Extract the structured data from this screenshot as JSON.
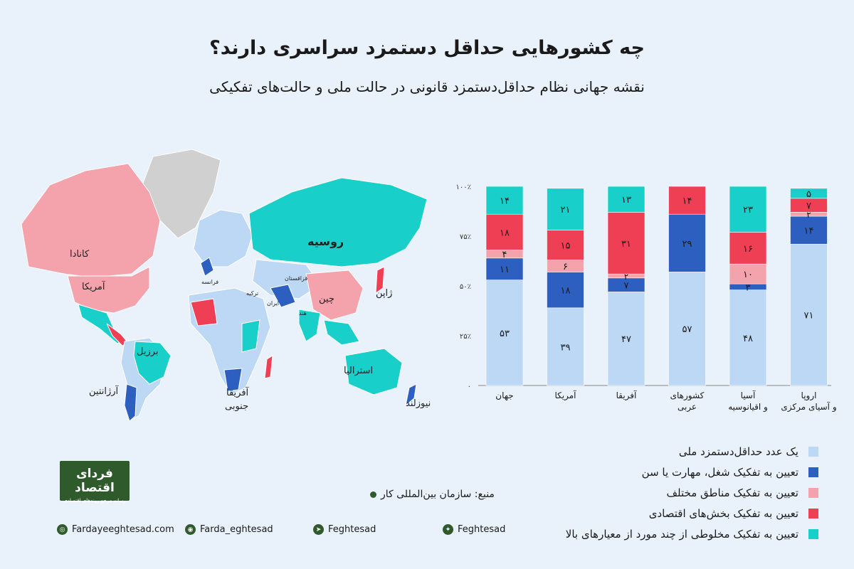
{
  "header": {
    "title": "چه کشورهایی حداقل دستمزد سراسری دارند؟",
    "subtitle": "نقشه جهانی نظام حداقل‌دستمزد قانونی در حالت ملی و حالت‌های تفکیکی"
  },
  "map": {
    "labels": {
      "russia": "روسیه",
      "canada": "کانادا",
      "usa": "آمریکا",
      "china": "چین",
      "japan": "ژاپن",
      "brazil": "برزیل",
      "argentina": "آرژانتین",
      "south_africa_1": "آفریقا",
      "south_africa_2": "جنوبی",
      "australia": "استرالیا",
      "new_zealand": "نیوزلند",
      "kazakhstan": "قزاقستان",
      "iran": "ایران",
      "india": "هند",
      "france": "فرانسه",
      "turkey": "ترکیه"
    }
  },
  "colors": {
    "national": "#bcd8f5",
    "occupation": "#2c5fbf",
    "regions": "#f4a3ac",
    "sectors": "#ef3f55",
    "mixed": "#19cfc9",
    "nodata": "#d0d0d0"
  },
  "chart_data": {
    "type": "bar",
    "stacked": true,
    "categories": [
      "جهان",
      "آمریکا",
      "آفریقا",
      "کشورهای عربی",
      "آسیا و اقیانوسیه",
      "اروپا و آسیای مرکزی"
    ],
    "category_lines": [
      [
        "جهان"
      ],
      [
        "آمریکا"
      ],
      [
        "آفریقا"
      ],
      [
        "کشورهای",
        "عربی"
      ],
      [
        "آسیا",
        "و اقیانوسیه"
      ],
      [
        "اروپا",
        "و آسیای مرکزی"
      ]
    ],
    "series": [
      {
        "name": "یک عدد حداقل‌دستمزد ملی",
        "color": "#bcd8f5",
        "values": [
          53,
          39,
          47,
          57,
          48,
          71
        ],
        "labels": [
          "۵۳",
          "۳۹",
          "۴۷",
          "۵۷",
          "۴۸",
          "۷۱"
        ]
      },
      {
        "name": "تعیین به تفکیک شغل، مهارت یا سن",
        "color": "#2c5fbf",
        "values": [
          11,
          18,
          7,
          29,
          3,
          14
        ],
        "labels": [
          "۱۱",
          "۱۸",
          "۷",
          "۲۹",
          "۳",
          "۱۴"
        ]
      },
      {
        "name": "تعیین به تفکیک مناطق مختلف",
        "color": "#f4a3ac",
        "values": [
          4,
          6,
          2,
          0,
          10,
          2
        ],
        "labels": [
          "۴",
          "۶",
          "۲",
          "",
          "۱۰",
          "۲"
        ]
      },
      {
        "name": "تعیین به تفکیک بخش‌های اقتصادی",
        "color": "#ef3f55",
        "values": [
          18,
          15,
          31,
          14,
          16,
          7
        ],
        "labels": [
          "۱۸",
          "۱۵",
          "۳۱",
          "۱۴",
          "۱۶",
          "۷"
        ]
      },
      {
        "name": "تعیین به تفکیک مخلوطی از چند مورد از معیارهای بالا",
        "color": "#19cfc9",
        "values": [
          14,
          21,
          13,
          0,
          23,
          5
        ],
        "labels": [
          "۱۴",
          "۲۱",
          "۱۳",
          "",
          "۲۳",
          "۵"
        ]
      }
    ],
    "yticks": [
      0,
      25,
      50,
      75,
      100
    ],
    "ytick_labels": [
      "۰",
      "۲۵٪",
      "۵۰٪",
      "۷۵٪",
      "۱۰۰٪"
    ],
    "ylim": [
      0,
      100
    ]
  },
  "brand": {
    "logo_line1": "فردای اقتصاد",
    "logo_line2": "رسانه مرجع روندهای اقتصادی"
  },
  "source": "منبع: سازمان بین‌المللی کار",
  "footer": {
    "website": "Fardayeeghtesad.com",
    "instagram": "Farda_eghtesad",
    "telegram": "Feghtesad",
    "twitter": "Feghtesad"
  }
}
